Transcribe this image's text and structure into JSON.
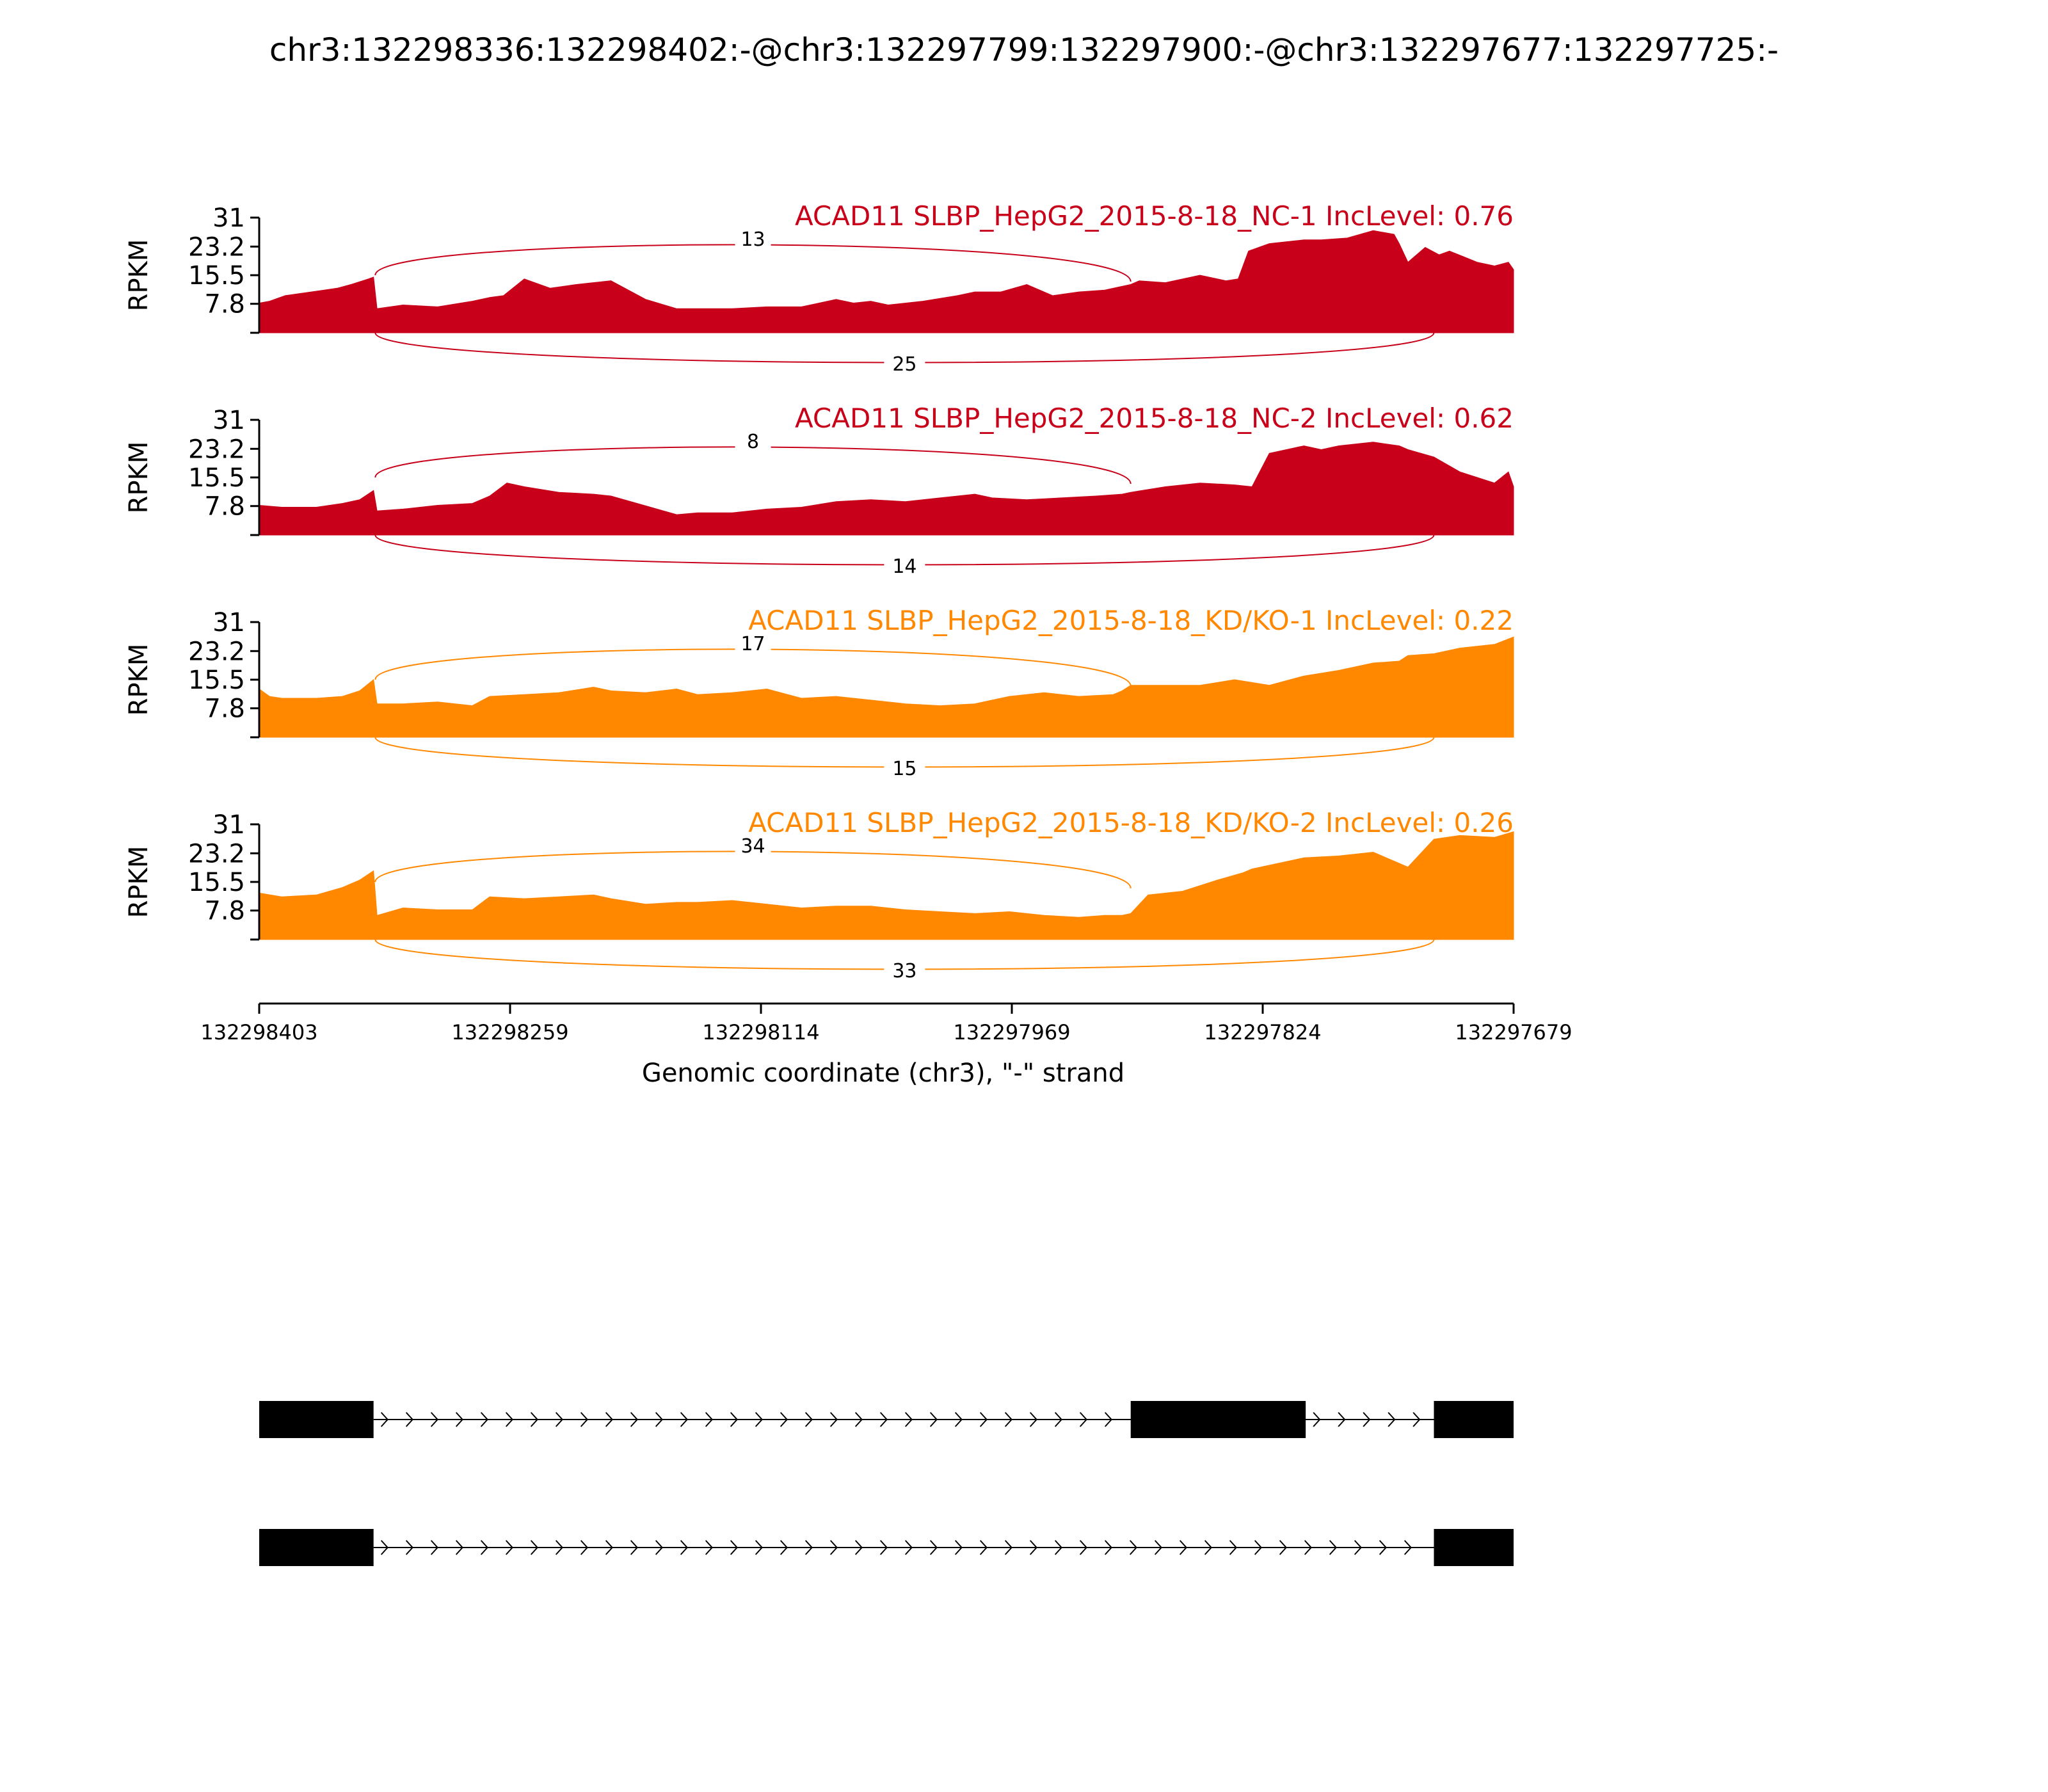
{
  "chart_data": {
    "type": "area",
    "title": "chr3:132298336:132298402:-@chr3:132297799:132297900:-@chr3:132297677:132297725:-",
    "xlabel": "Genomic coordinate (chr3), \"-\" strand",
    "ylabel": "RPKM",
    "x_ticks": [
      "132298403",
      "132298259",
      "132298114",
      "132297969",
      "132297824",
      "132297679"
    ],
    "x_range": [
      132298403,
      132297679
    ],
    "y_ticks": [
      "31",
      "23.2",
      "15.5",
      "7.8"
    ],
    "ylim": [
      0,
      31
    ],
    "series": [
      {
        "name": "ACAD11 SLBP_HepG2_2015-8-18_NC-1 IncLevel: 0.76",
        "color": "#c8001a",
        "x": [
          132298403,
          132298397,
          132298388,
          132298373,
          132298358,
          132298350,
          132298340,
          132298337,
          132298335,
          132298320,
          132298300,
          132298280,
          132298270,
          132298262,
          132298250,
          132298235,
          132298220,
          132298200,
          132298180,
          132298162,
          132298150,
          132298130,
          132298110,
          132298090,
          132298070,
          132298060,
          132298050,
          132298040,
          132298020,
          132298000,
          132297990,
          132297975,
          132297960,
          132297945,
          132297930,
          132297915,
          132297905,
          132297900,
          132297895,
          132297880,
          132297860,
          132297845,
          132297838,
          132297832,
          132297820,
          132297800,
          132297790,
          132297775,
          132297760,
          132297748,
          132297745,
          132297740,
          132297730,
          132297722,
          132297716,
          132297700,
          132297690,
          132297682,
          132297679
        ],
        "y": [
          8,
          8.5,
          10,
          11,
          12,
          13,
          14.5,
          15,
          6.5,
          7.5,
          7,
          8.5,
          9.5,
          10,
          14.5,
          12,
          13,
          14,
          9,
          6.5,
          6.5,
          6.5,
          7,
          7,
          9,
          8,
          8.5,
          7.5,
          8.5,
          10,
          11,
          11,
          13,
          10,
          11,
          11.5,
          12.5,
          13,
          14,
          13.5,
          15.5,
          14,
          14.5,
          22,
          24,
          25,
          25,
          25.5,
          27.5,
          26.5,
          24,
          19,
          23,
          21,
          22,
          19,
          18,
          19,
          17
        ]
      },
      {
        "name": "ACAD11 SLBP_HepG2_2015-8-18_NC-2 IncLevel: 0.62",
        "color": "#c8001a",
        "x": [
          132298403,
          132298390,
          132298370,
          132298355,
          132298345,
          132298337,
          132298335,
          132298320,
          132298300,
          132298280,
          132298270,
          132298260,
          132298250,
          132298230,
          132298210,
          132298200,
          132298162,
          132298150,
          132298130,
          132298110,
          132298090,
          132298070,
          132298050,
          132298030,
          132298010,
          132297990,
          132297980,
          132297960,
          132297940,
          132297920,
          132297905,
          132297900,
          132297880,
          132297860,
          132297840,
          132297830,
          132297820,
          132297800,
          132297790,
          132297780,
          132297760,
          132297745,
          132297740,
          132297725,
          132297710,
          132297690,
          132297682,
          132297679
        ],
        "y": [
          8,
          7.5,
          7.5,
          8.5,
          9.5,
          12,
          6.5,
          7,
          8,
          8.5,
          10.5,
          14,
          13,
          11.5,
          11,
          10.5,
          5.5,
          6,
          6,
          7,
          7.5,
          9,
          9.5,
          9,
          10,
          11,
          10,
          9.5,
          10,
          10.5,
          11,
          11.5,
          13,
          14,
          13.5,
          13,
          22,
          24,
          23,
          24,
          25,
          24,
          23,
          21,
          17,
          14,
          17,
          13
        ]
      },
      {
        "name": "ACAD11 SLBP_HepG2_2015-8-18_KD/KO-1 IncLevel: 0.22",
        "color": "#ff8800",
        "x": [
          132298403,
          132298397,
          132298390,
          132298370,
          132298355,
          132298345,
          132298337,
          132298335,
          132298320,
          132298300,
          132298280,
          132298270,
          132298250,
          132298230,
          132298210,
          132298200,
          132298180,
          132298162,
          132298150,
          132298130,
          132298110,
          132298090,
          132298070,
          132298050,
          132298030,
          132298010,
          132297990,
          132297970,
          132297950,
          132297930,
          132297910,
          132297905,
          132297900,
          132297880,
          132297860,
          132297840,
          132297820,
          132297800,
          132297780,
          132297760,
          132297745,
          132297740,
          132297725,
          132297710,
          132297690,
          132297679
        ],
        "y": [
          13,
          11,
          10.5,
          10.5,
          11,
          12.5,
          15.5,
          9,
          9,
          9.5,
          8.5,
          11,
          11.5,
          12,
          13.5,
          12.5,
          12,
          13,
          11.5,
          12,
          13,
          10.5,
          11,
          10,
          9,
          8.5,
          9,
          11,
          12,
          11,
          11.5,
          12.5,
          14,
          14,
          14,
          15.5,
          14,
          16.5,
          18,
          20,
          20.5,
          22,
          22.5,
          24,
          25,
          27
        ]
      },
      {
        "name": "ACAD11 SLBP_HepG2_2015-8-18_KD/KO-2 IncLevel: 0.26",
        "color": "#ff8800",
        "x": [
          132298403,
          132298390,
          132298370,
          132298355,
          132298345,
          132298337,
          132298335,
          132298320,
          132298300,
          132298280,
          132298270,
          132298250,
          132298230,
          132298210,
          132298200,
          132298180,
          132298162,
          132298150,
          132298130,
          132298110,
          132298090,
          132298070,
          132298050,
          132298030,
          132298010,
          132297990,
          132297970,
          132297950,
          132297930,
          132297915,
          132297905,
          132297900,
          132297890,
          132297870,
          132297850,
          132297835,
          132297830,
          132297810,
          132297800,
          132297780,
          132297760,
          132297745,
          132297740,
          132297725,
          132297710,
          132297690,
          132297679
        ],
        "y": [
          12.5,
          11.5,
          12,
          14,
          16,
          18.5,
          6.5,
          8.5,
          8,
          8,
          11.5,
          11,
          11.5,
          12,
          11,
          9.5,
          10,
          10,
          10.5,
          9.5,
          8.5,
          9,
          9,
          8,
          7.5,
          7,
          7.5,
          6.5,
          6,
          6.5,
          6.5,
          7,
          12,
          13,
          16,
          18,
          19,
          21,
          22,
          22.5,
          23.5,
          20.5,
          19.5,
          27,
          28,
          27.5,
          29
        ]
      }
    ],
    "junctions": [
      {
        "series": 0,
        "values": [
          "13",
          "25"
        ]
      },
      {
        "series": 1,
        "values": [
          "8",
          "14"
        ]
      },
      {
        "series": 2,
        "values": [
          "17",
          "15"
        ]
      },
      {
        "series": 3,
        "values": [
          "34",
          "33"
        ]
      }
    ],
    "transcripts": [
      {
        "exons": [
          [
            132298403,
            132298337
          ],
          [
            132297900,
            132297799
          ],
          [
            132297725,
            132297679
          ]
        ]
      },
      {
        "exons": [
          [
            132298403,
            132298337
          ],
          [
            132297725,
            132297679
          ]
        ]
      }
    ]
  }
}
